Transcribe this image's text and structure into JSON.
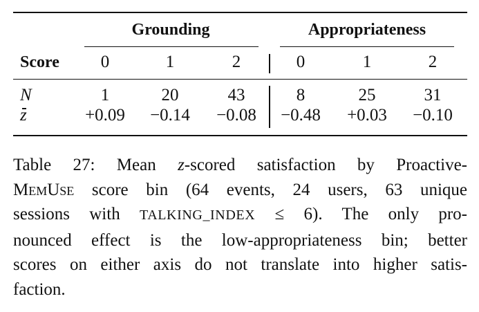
{
  "table": {
    "groups": [
      "Grounding",
      "Appropriateness"
    ],
    "row_header": "Score",
    "score_levels": [
      "0",
      "1",
      "2",
      "0",
      "1",
      "2"
    ],
    "rows": [
      {
        "label": "N",
        "values": [
          "1",
          "20",
          "43",
          "8",
          "25",
          "31"
        ]
      },
      {
        "label": "z",
        "values": [
          "+0.09",
          "−0.14",
          "−0.08",
          "−0.48",
          "+0.03",
          "−0.10"
        ]
      }
    ]
  },
  "caption": {
    "l1a": "Table 27: Mean ",
    "l1z": "z",
    "l1b": "-scored satisfaction by Proactive-",
    "l2a": "MemUse",
    "l2b": " score bin (64 events, 24 users, 63 unique",
    "l3a": "sessions with ",
    "l3b": "TALKING_INDEX",
    "l3c": " ≤ 6). The only pro-",
    "l4": "nounced effect is the low-appropriateness bin; better",
    "l5": "scores on either axis do not translate into higher satis-",
    "l6": "faction."
  }
}
